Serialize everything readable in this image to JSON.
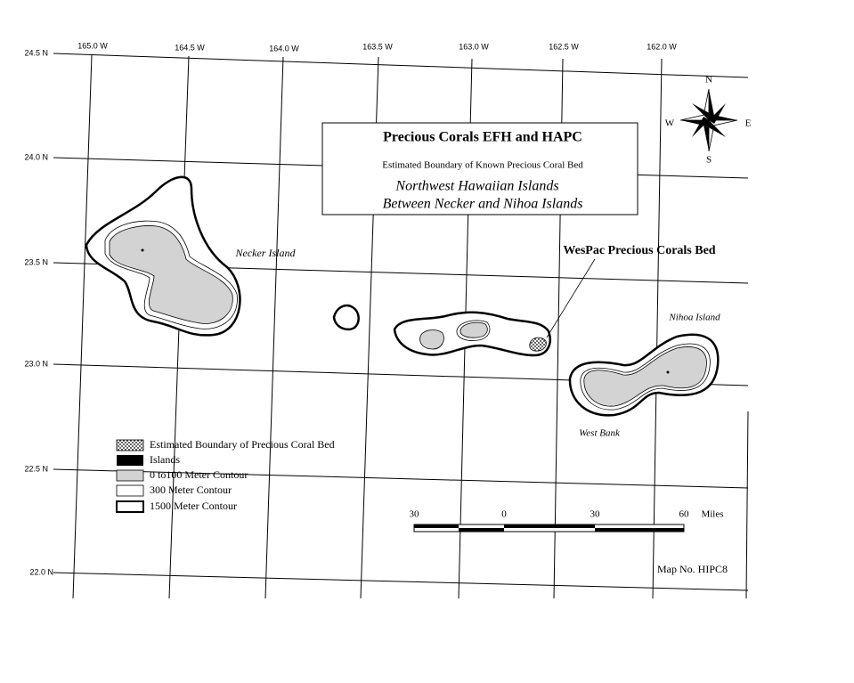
{
  "title_box": {
    "title": "Precious Corals EFH and HAPC",
    "subtitle": "Estimated Boundary of Known Precious Coral Bed",
    "region_line1": "Northwest Hawaiian Islands",
    "region_line2": "Between Necker and Nihoa Islands"
  },
  "longitude_labels": [
    "165.0 W",
    "164.5 W",
    "164.0 W",
    "163.5 W",
    "163.0 W",
    "162.5 W",
    "162.0 W"
  ],
  "latitude_labels": [
    "24.5 N",
    "24.0 N",
    "23.5 N",
    "23.0 N",
    "22.5 N",
    "22.0 N"
  ],
  "place_labels": {
    "necker": "Necker Island",
    "nihoa": "Nihoa Island",
    "west_bank": "West Bank",
    "coral_bed": "WesPac Precious Corals Bed"
  },
  "legend": [
    "Estimated Boundary of Precious Coral Bed",
    "Islands",
    "0 to100 Meter Contour",
    "300 Meter Contour",
    "1500 Meter Contour"
  ],
  "compass": {
    "north": "N",
    "south": "S",
    "east": "E",
    "west": "W"
  },
  "scale_bar": {
    "labels": [
      "30",
      "0",
      "30",
      "60"
    ],
    "unit": "Miles"
  },
  "map_number": "Map No. HIPC8"
}
